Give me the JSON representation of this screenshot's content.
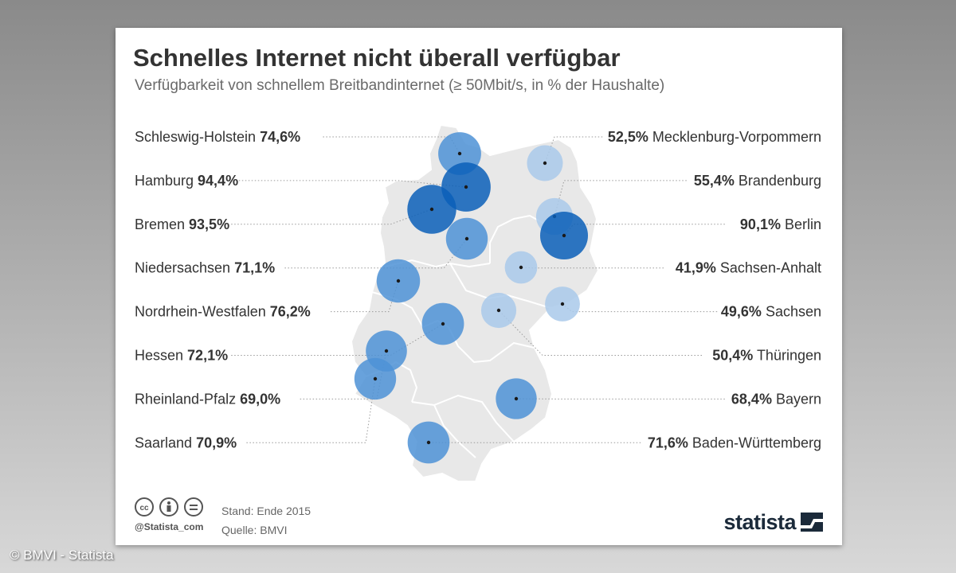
{
  "chart_data": {
    "type": "bubble-map",
    "title": "Schnelles Internet nicht überall verfügbar",
    "subtitle": "Verfügbarkeit von schnellem Breitbandinternet (≥ 50Mbit/s, in % der Haushalte)",
    "series": [
      {
        "name": "Schleswig-Holstein",
        "value": 74.6,
        "label": "74,6%",
        "side": "left"
      },
      {
        "name": "Hamburg",
        "value": 94.4,
        "label": "94,4%",
        "side": "left"
      },
      {
        "name": "Bremen",
        "value": 93.5,
        "label": "93,5%",
        "side": "left"
      },
      {
        "name": "Niedersachsen",
        "value": 71.1,
        "label": "71,1%",
        "side": "left"
      },
      {
        "name": "Nordrhein-Westfalen",
        "value": 76.2,
        "label": "76,2%",
        "side": "left"
      },
      {
        "name": "Hessen",
        "value": 72.1,
        "label": "72,1%",
        "side": "left"
      },
      {
        "name": "Rheinland-Pfalz",
        "value": 69.0,
        "label": "69,0%",
        "side": "left"
      },
      {
        "name": "Saarland",
        "value": 70.9,
        "label": "70,9%",
        "side": "left"
      },
      {
        "name": "Mecklenburg-Vorpommern",
        "value": 52.5,
        "label": "52,5%",
        "side": "right"
      },
      {
        "name": "Brandenburg",
        "value": 55.4,
        "label": "55,4%",
        "side": "right"
      },
      {
        "name": "Berlin",
        "value": 90.1,
        "label": "90,1%",
        "side": "right"
      },
      {
        "name": "Sachsen-Anhalt",
        "value": 41.9,
        "label": "41,9%",
        "side": "right"
      },
      {
        "name": "Sachsen",
        "value": 49.6,
        "label": "49,6%",
        "side": "right"
      },
      {
        "name": "Thüringen",
        "value": 50.4,
        "label": "50,4%",
        "side": "right"
      },
      {
        "name": "Bayern",
        "value": 68.4,
        "label": "68,4%",
        "side": "right"
      },
      {
        "name": "Baden-Württemberg",
        "value": 71.6,
        "label": "71,6%",
        "side": "right"
      }
    ]
  },
  "footer": {
    "handle": "@Statista_com",
    "stand": "Stand: Ende 2015",
    "quelle": "Quelle: BMVI",
    "logo": "statista"
  },
  "watermark": "© BMVI - Statista",
  "colors": {
    "low": "#a9c9ea",
    "mid": "#4d92d6",
    "high": "#0a5fb8",
    "map": "#e8e8e8",
    "leader": "#9a9a9a"
  }
}
